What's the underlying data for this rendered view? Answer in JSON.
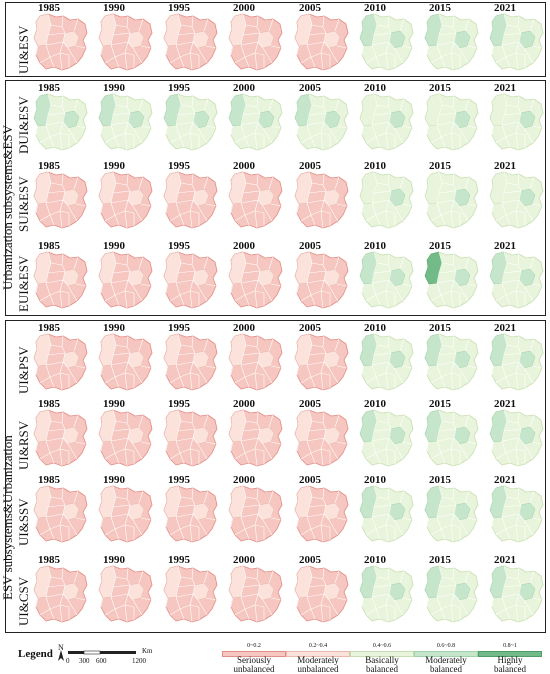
{
  "years": [
    "1985",
    "1990",
    "1995",
    "2000",
    "2005",
    "2010",
    "2015",
    "2021"
  ],
  "group_labels": {
    "urban": "Urbanization subsystems&ESV",
    "esv": "ESV subsystems&Urbanization"
  },
  "rows": [
    {
      "label": "UI&ESV",
      "levels": [
        1,
        1,
        1,
        1,
        1,
        3,
        3,
        3
      ]
    },
    {
      "label": "DUI&ESV",
      "levels": [
        3,
        3,
        3,
        3,
        3,
        2,
        2,
        2
      ]
    },
    {
      "label": "SUI&ESV",
      "levels": [
        1,
        1,
        1,
        1,
        1,
        2,
        2,
        2
      ]
    },
    {
      "label": "EUI&ESV",
      "levels": [
        1,
        1,
        1,
        1,
        1,
        3,
        4,
        3
      ]
    },
    {
      "label": "UI&PSV",
      "levels": [
        1,
        1,
        1,
        1,
        1,
        3,
        3,
        3
      ]
    },
    {
      "label": "UI&RSV",
      "levels": [
        1,
        1,
        1,
        1,
        1,
        3,
        3,
        3
      ]
    },
    {
      "label": "UI&SSV",
      "levels": [
        1,
        1,
        1,
        1,
        1,
        3,
        3,
        3
      ]
    },
    {
      "label": "UI&CSV",
      "levels": [
        1,
        1,
        1,
        1,
        1,
        3,
        3,
        3
      ]
    }
  ],
  "legend": {
    "title": "Legend",
    "north": "N",
    "scale_values": [
      "0",
      "300",
      "600",
      "1200"
    ],
    "scale_unit": "Km",
    "classes": [
      {
        "range": "0~0.2",
        "label": "Seriously unbalanced",
        "color": "#f6c6c0",
        "border": "#e28d86"
      },
      {
        "range": "0.2~0.4",
        "label": "Moderately unbalanced",
        "color": "#fbe3dc",
        "border": "#e9b8ae"
      },
      {
        "range": "0.4~0.6",
        "label": "Basically balanced",
        "color": "#e9f4dc",
        "border": "#c7dfb0"
      },
      {
        "range": "0.6~0.8",
        "label": "Moderately balanced",
        "color": "#c5e6cb",
        "border": "#a2d2ac"
      },
      {
        "range": "0.8~1",
        "label": "Highly balanced",
        "color": "#72bb88",
        "border": "#4f9d69"
      }
    ]
  }
}
